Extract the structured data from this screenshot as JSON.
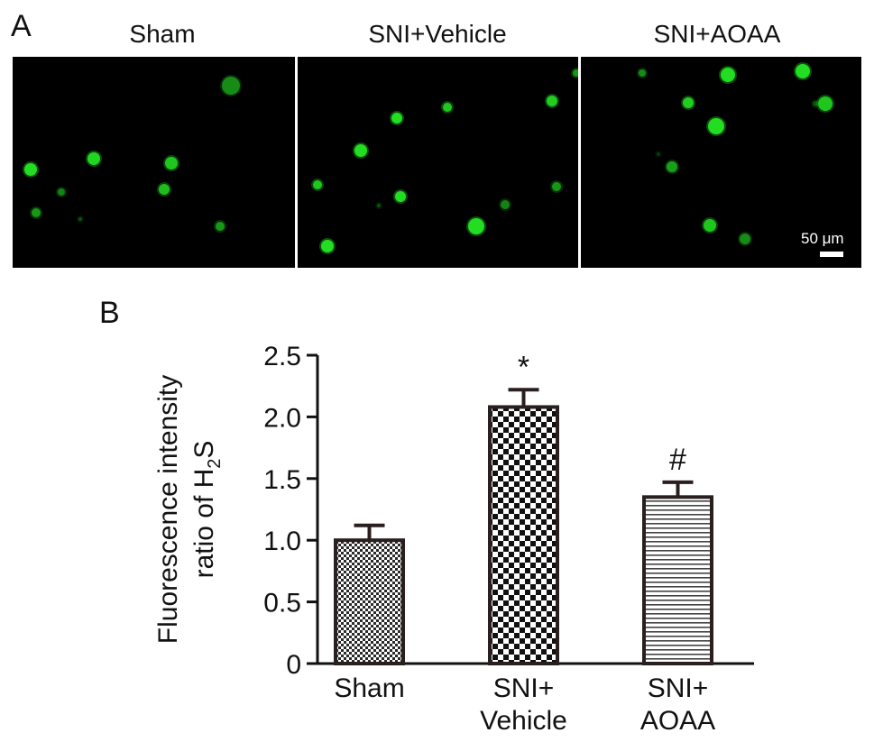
{
  "panel_a": {
    "letter": "A",
    "titles": [
      "Sham",
      "SNI+Vehicle",
      "SNI+AOAA"
    ],
    "scale_bar": "50 μm",
    "cell_color": "#22dd22"
  },
  "panel_b": {
    "letter": "B"
  },
  "chart_data": {
    "type": "bar",
    "categories": [
      [
        "Sham"
      ],
      [
        "SNI+",
        "Vehicle"
      ],
      [
        "SNI+",
        "AOAA"
      ]
    ],
    "values": [
      1.0,
      2.08,
      1.35
    ],
    "errors": [
      0.12,
      0.14,
      0.12
    ],
    "annotations": [
      "",
      "*",
      "#"
    ],
    "patterns": [
      "fine-checker",
      "coarse-checker",
      "horizontal-stripes"
    ],
    "ylabel_line1": "Fluorescence intensity",
    "ylabel_line2_prefix": "ratio of H",
    "ylabel_sub": "2",
    "ylabel_suffix": "S",
    "ylim": [
      0,
      2.5
    ],
    "yticks": [
      "0",
      "0.5",
      "1.0",
      "1.5",
      "2.0",
      "2.5"
    ],
    "ytick_values": [
      0,
      0.5,
      1.0,
      1.5,
      2.0,
      2.5
    ]
  }
}
